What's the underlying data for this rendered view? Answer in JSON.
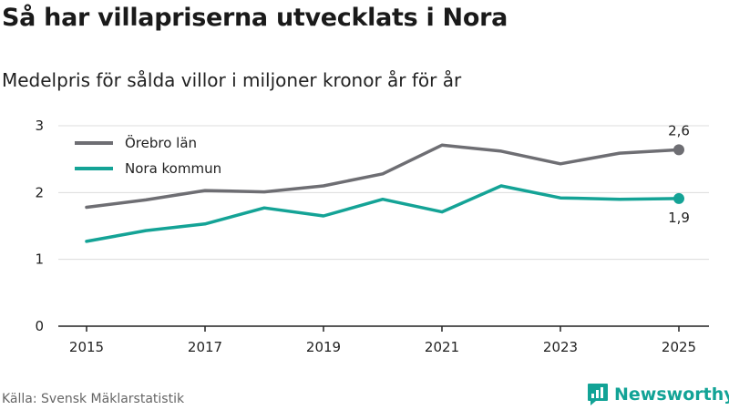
{
  "header": {
    "title": "Så har villapriserna utvecklats i Nora",
    "subtitle": "Medelpris för sålda villor i miljoner kronor år för år"
  },
  "footer": {
    "source": "Källa: Svensk Mäklarstatistik",
    "brand": "Newsworthy"
  },
  "colors": {
    "orebro": "#6e6e73",
    "nora": "#14a396",
    "grid": "#dcdcdc",
    "axis": "#222222"
  },
  "chart_data": {
    "type": "line",
    "title": "Så har villapriserna utvecklats i Nora",
    "subtitle": "Medelpris för sålda villor i miljoner kronor år för år",
    "xlabel": "",
    "ylabel": "",
    "x": [
      2015,
      2016,
      2017,
      2018,
      2019,
      2020,
      2021,
      2022,
      2023,
      2024,
      2025
    ],
    "x_ticks": [
      "2015",
      "2017",
      "2019",
      "2021",
      "2023",
      "2025"
    ],
    "y_ticks": [
      "0",
      "1",
      "2",
      "3"
    ],
    "ylim": [
      0,
      3
    ],
    "grid": true,
    "legend_position": "top-left",
    "series": [
      {
        "name": "Örebro län",
        "color": "#6e6e73",
        "values": [
          1.78,
          1.89,
          2.03,
          2.01,
          2.1,
          2.28,
          2.71,
          2.62,
          2.43,
          2.59,
          2.64
        ],
        "end_label": "2,6"
      },
      {
        "name": "Nora kommun",
        "color": "#14a396",
        "values": [
          1.27,
          1.43,
          1.53,
          1.77,
          1.65,
          1.9,
          1.71,
          2.1,
          1.92,
          1.9,
          1.91
        ],
        "end_label": "1,9"
      }
    ]
  }
}
